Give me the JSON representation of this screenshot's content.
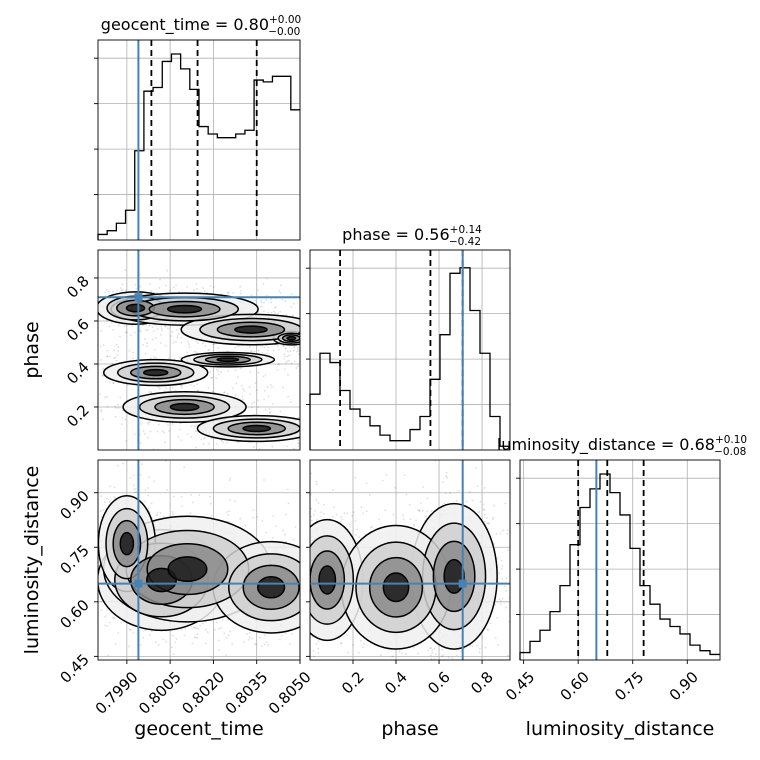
{
  "chart_data": {
    "type": "corner",
    "truth_color": "#4682b4",
    "parameters": [
      {
        "name": "geocent_time",
        "axis_label": "geocent_time",
        "range": [
          0.798,
          0.805
        ],
        "ticks": [
          "0.7990",
          "0.8005",
          "0.8020",
          "0.8035",
          "0.8050"
        ],
        "tick_values": [
          0.799,
          0.8005,
          0.802,
          0.8035,
          0.805
        ],
        "truth": 0.7994,
        "quantiles": [
          0.79985,
          0.80145,
          0.8035
        ],
        "title": {
          "main": "geocent_time = 0.80",
          "plus": "+0.00",
          "minus": "−0.00"
        },
        "histogram": [
          0.03,
          0.05,
          0.09,
          0.16,
          0.48,
          0.8,
          0.82,
          0.96,
          1.0,
          0.92,
          0.81,
          0.61,
          0.57,
          0.55,
          0.55,
          0.57,
          0.59,
          0.86,
          0.85,
          0.88,
          0.88,
          0.7
        ]
      },
      {
        "name": "phase",
        "axis_label": "phase",
        "range": [
          0.0,
          0.93
        ],
        "ticks": [
          "0.2",
          "0.4",
          "0.6",
          "0.8"
        ],
        "tick_values": [
          0.2,
          0.4,
          0.6,
          0.8
        ],
        "truth": 0.71,
        "quantiles": [
          0.14,
          0.56,
          0.71
        ],
        "title": {
          "main": "phase = 0.56",
          "plus": "+0.14",
          "minus": "−0.42"
        },
        "histogram": [
          0.3,
          0.52,
          0.47,
          0.32,
          0.22,
          0.18,
          0.13,
          0.08,
          0.05,
          0.05,
          0.11,
          0.18,
          0.38,
          0.62,
          0.95,
          0.98,
          0.75,
          0.52,
          0.18,
          0.02
        ]
      },
      {
        "name": "luminosity_distance",
        "axis_label": "luminosity_distance",
        "range": [
          0.44,
          0.99
        ],
        "ticks": [
          "0.45",
          "0.60",
          "0.75",
          "0.90"
        ],
        "tick_values": [
          0.45,
          0.6,
          0.75,
          0.9
        ],
        "truth": 0.65,
        "quantiles": [
          0.6,
          0.68,
          0.78
        ],
        "title": {
          "main": "luminosity_distance = 0.68",
          "plus": "+0.10",
          "minus": "−0.08"
        },
        "histogram": [
          0.04,
          0.1,
          0.16,
          0.26,
          0.4,
          0.62,
          0.82,
          0.92,
          1.0,
          0.9,
          0.78,
          0.6,
          0.4,
          0.3,
          0.22,
          0.18,
          0.14,
          0.08,
          0.05,
          0.03
        ]
      }
    ],
    "joint_samples": {
      "phase_vs_geocent_time": {
        "clusters": [
          {
            "x": 0.7993,
            "y": 0.66,
            "sx": 0.0009,
            "sy": 0.05,
            "w": 0.1
          },
          {
            "x": 0.801,
            "y": 0.655,
            "sx": 0.0012,
            "sy": 0.035,
            "w": 0.2
          },
          {
            "x": 0.8033,
            "y": 0.56,
            "sx": 0.0012,
            "sy": 0.035,
            "w": 0.18
          },
          {
            "x": 0.8047,
            "y": 0.52,
            "sx": 0.0005,
            "sy": 0.025,
            "w": 0.07
          },
          {
            "x": 0.8,
            "y": 0.36,
            "sx": 0.0012,
            "sy": 0.04,
            "w": 0.1
          },
          {
            "x": 0.8025,
            "y": 0.42,
            "sx": 0.0012,
            "sy": 0.025,
            "w": 0.08
          },
          {
            "x": 0.801,
            "y": 0.2,
            "sx": 0.0012,
            "sy": 0.04,
            "w": 0.14
          },
          {
            "x": 0.8035,
            "y": 0.1,
            "sx": 0.0012,
            "sy": 0.035,
            "w": 0.13
          }
        ]
      },
      "luminosity_distance_vs_geocent_time": {
        "clusters": [
          {
            "x": 0.8002,
            "y": 0.66,
            "sx": 0.0008,
            "sy": 0.05,
            "w": 0.34
          },
          {
            "x": 0.8011,
            "y": 0.69,
            "sx": 0.0012,
            "sy": 0.06,
            "w": 0.26
          },
          {
            "x": 0.804,
            "y": 0.64,
            "sx": 0.0008,
            "sy": 0.05,
            "w": 0.28
          },
          {
            "x": 0.799,
            "y": 0.76,
            "sx": 0.0006,
            "sy": 0.08,
            "w": 0.12
          }
        ]
      },
      "luminosity_distance_vs_phase": {
        "clusters": [
          {
            "x": 0.67,
            "y": 0.67,
            "sx": 0.07,
            "sy": 0.07,
            "w": 0.55
          },
          {
            "x": 0.08,
            "y": 0.66,
            "sx": 0.07,
            "sy": 0.07,
            "w": 0.25
          },
          {
            "x": 0.4,
            "y": 0.64,
            "sx": 0.12,
            "sy": 0.08,
            "w": 0.2
          }
        ]
      }
    }
  }
}
